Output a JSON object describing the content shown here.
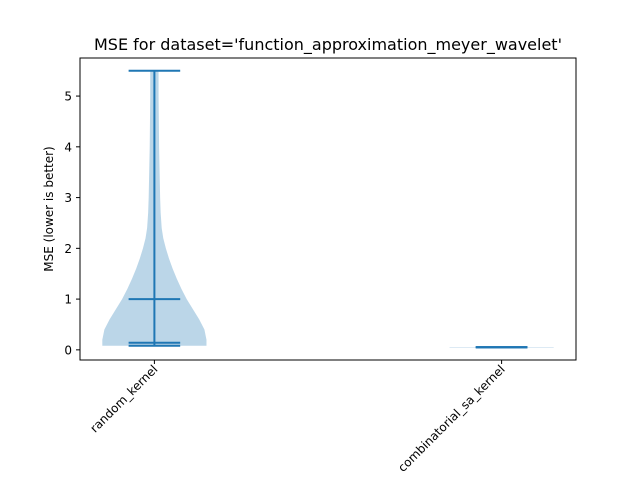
{
  "chart_data": {
    "type": "violin",
    "title": "MSE for dataset='function_approximation_meyer_wavelet'",
    "xlabel": "",
    "ylabel": "MSE (lower is better)",
    "ylim": [
      -0.2,
      5.75
    ],
    "yticks": [
      0,
      1,
      2,
      3,
      4,
      5
    ],
    "ytick_labels": [
      "0",
      "1",
      "2",
      "3",
      "4",
      "5"
    ],
    "grid": false,
    "categories": [
      "random_kernel",
      "combinatorial_sa_kernel"
    ],
    "violins": [
      {
        "category": "random_kernel",
        "min": 0.08,
        "median": 0.14,
        "mean": 1.0,
        "max": 5.5,
        "density_profile": [
          [
            0.08,
            1.0
          ],
          [
            0.2,
            1.0
          ],
          [
            0.4,
            0.96
          ],
          [
            0.6,
            0.86
          ],
          [
            0.8,
            0.74
          ],
          [
            1.0,
            0.62
          ],
          [
            1.2,
            0.52
          ],
          [
            1.4,
            0.43
          ],
          [
            1.6,
            0.35
          ],
          [
            1.8,
            0.28
          ],
          [
            2.0,
            0.22
          ],
          [
            2.2,
            0.17
          ],
          [
            2.4,
            0.14
          ],
          [
            2.7,
            0.12
          ],
          [
            3.0,
            0.11
          ],
          [
            4.0,
            0.09
          ],
          [
            5.0,
            0.08
          ],
          [
            5.5,
            0.08
          ]
        ]
      },
      {
        "category": "combinatorial_sa_kernel",
        "min": 0.05,
        "median": 0.05,
        "mean": 0.05,
        "max": 0.05,
        "density_profile": [
          [
            0.045,
            1.0
          ],
          [
            0.055,
            1.0
          ]
        ]
      }
    ],
    "colors": {
      "body": "#1f77b4",
      "body_alpha": 0.3,
      "lines": "#1f77b4"
    }
  }
}
